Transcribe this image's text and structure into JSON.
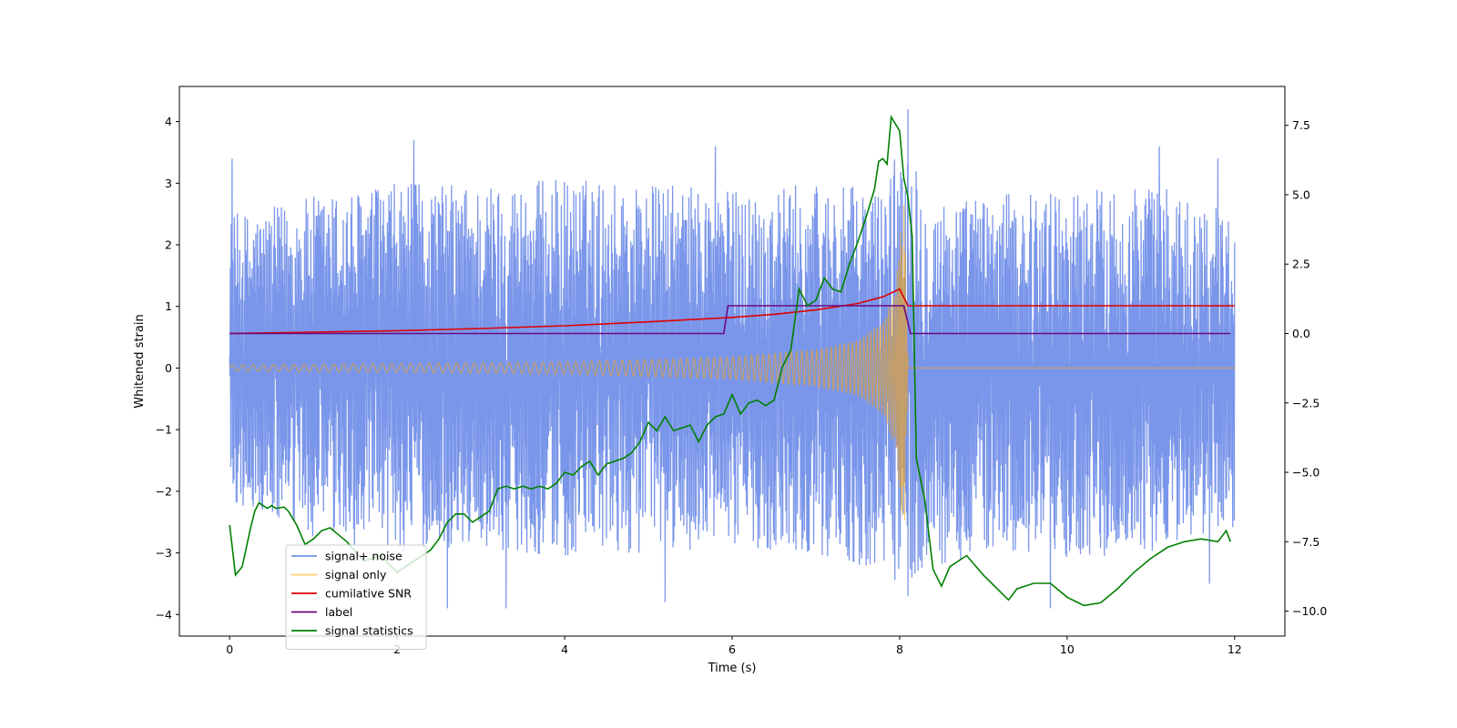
{
  "chart_data": {
    "type": "line",
    "title": "",
    "xlabel": "Time (s)",
    "ylabel": "Whitened strain",
    "y2label": "",
    "xlim": [
      -0.6,
      12.6
    ],
    "ylim": [
      -4.35,
      4.57
    ],
    "y2lim": [
      -10.9,
      8.9
    ],
    "xticks": [
      0,
      2,
      4,
      6,
      8,
      10,
      12
    ],
    "xtick_labels": [
      "0",
      "2",
      "4",
      "6",
      "8",
      "10",
      "12"
    ],
    "yticks": [
      -4,
      -3,
      -2,
      -1,
      0,
      1,
      2,
      3,
      4
    ],
    "ytick_labels": [
      "−4",
      "−3",
      "−2",
      "−1",
      "0",
      "1",
      "2",
      "3",
      "4"
    ],
    "y2ticks": [
      -10,
      -7.5,
      -5,
      -2.5,
      0,
      2.5,
      5,
      7.5
    ],
    "y2tick_labels": [
      "−10.0",
      "−7.5",
      "−5.0",
      "−2.5",
      "0.0",
      "2.5",
      "5.0",
      "7.5"
    ],
    "grid": false,
    "legend_position": "lower-left",
    "series": [
      {
        "name": "signal+ noise",
        "color": "#4169e1",
        "axis": "left",
        "style": "noise",
        "x_range": [
          0,
          12
        ],
        "envelope_max": [
          [
            0,
            2.5
          ],
          [
            0.5,
            2.6
          ],
          [
            1,
            2.8
          ],
          [
            2,
            3.0
          ],
          [
            3,
            3.0
          ],
          [
            4,
            3.1
          ],
          [
            5,
            3.0
          ],
          [
            6,
            2.9
          ],
          [
            7,
            3.0
          ],
          [
            7.8,
            2.9
          ],
          [
            8.1,
            4.1
          ],
          [
            8.3,
            2.7
          ],
          [
            9,
            2.8
          ],
          [
            10,
            2.9
          ],
          [
            11,
            3.0
          ],
          [
            12,
            2.5
          ]
        ],
        "envelope_min": [
          [
            0,
            -2.2
          ],
          [
            1,
            -2.8
          ],
          [
            2,
            -3.0
          ],
          [
            3,
            -2.9
          ],
          [
            4,
            -3.1
          ],
          [
            5,
            -3.0
          ],
          [
            6,
            -2.9
          ],
          [
            7,
            -3.0
          ],
          [
            8,
            -3.5
          ],
          [
            9,
            -3.0
          ],
          [
            10,
            -3.1
          ],
          [
            11,
            -3.0
          ],
          [
            12,
            -2.6
          ]
        ],
        "spikes": [
          [
            0.03,
            3.4
          ],
          [
            0.05,
            -1.3
          ],
          [
            2.2,
            3.7
          ],
          [
            2.6,
            -3.9
          ],
          [
            3.3,
            -3.9
          ],
          [
            5.2,
            -3.8
          ],
          [
            5.8,
            3.6
          ],
          [
            7.6,
            -3.2
          ],
          [
            8.1,
            4.2
          ],
          [
            8.1,
            -3.7
          ],
          [
            9.8,
            -3.9
          ],
          [
            11.1,
            3.6
          ],
          [
            11.8,
            3.4
          ],
          [
            11.7,
            -3.5
          ]
        ]
      },
      {
        "name": "signal only",
        "color": "#ffa500",
        "axis": "left",
        "style": "chirp",
        "x_range": [
          0,
          12
        ],
        "merger_time": 8.05,
        "amplitude_points": [
          [
            0,
            0.05
          ],
          [
            2,
            0.07
          ],
          [
            4,
            0.1
          ],
          [
            6,
            0.18
          ],
          [
            7,
            0.3
          ],
          [
            7.5,
            0.45
          ],
          [
            7.8,
            0.75
          ],
          [
            7.95,
            1.3
          ],
          [
            8.02,
            2.4
          ],
          [
            8.05,
            3.1
          ],
          [
            8.1,
            0.0
          ],
          [
            12,
            0.0
          ]
        ]
      },
      {
        "name": "cumilative SNR",
        "color": "#e00000",
        "axis": "right",
        "x": [
          0,
          1,
          2,
          3,
          4,
          5,
          6,
          6.5,
          7,
          7.5,
          7.8,
          8.0,
          8.1,
          12
        ],
        "y": [
          0.0,
          0.05,
          0.1,
          0.18,
          0.28,
          0.42,
          0.58,
          0.69,
          0.85,
          1.08,
          1.32,
          1.6,
          1.0,
          1.0
        ]
      },
      {
        "name": "label",
        "color": "#6a0a80",
        "axis": "right",
        "x": [
          0,
          5.9,
          5.95,
          8.05,
          8.13,
          11.95
        ],
        "y": [
          0,
          0,
          1,
          1,
          0,
          0
        ]
      },
      {
        "name": "signal statistics",
        "color": "#008000",
        "axis": "right",
        "x": [
          0,
          0.07,
          0.15,
          0.25,
          0.3,
          0.35,
          0.45,
          0.5,
          0.55,
          0.65,
          0.7,
          0.8,
          0.9,
          1.0,
          1.1,
          1.2,
          1.4,
          1.6,
          1.8,
          2.0,
          2.2,
          2.4,
          2.5,
          2.6,
          2.7,
          2.8,
          2.9,
          3.0,
          3.1,
          3.2,
          3.3,
          3.4,
          3.5,
          3.6,
          3.7,
          3.8,
          3.9,
          4.0,
          4.1,
          4.2,
          4.3,
          4.4,
          4.5,
          4.6,
          4.7,
          4.8,
          4.9,
          5.0,
          5.1,
          5.2,
          5.3,
          5.4,
          5.5,
          5.6,
          5.7,
          5.8,
          5.9,
          6.0,
          6.1,
          6.2,
          6.3,
          6.4,
          6.5,
          6.6,
          6.7,
          6.8,
          6.9,
          7.0,
          7.1,
          7.2,
          7.3,
          7.4,
          7.5,
          7.6,
          7.7,
          7.75,
          7.8,
          7.85,
          7.9,
          8.0,
          8.05,
          8.1,
          8.15,
          8.2,
          8.3,
          8.4,
          8.5,
          8.6,
          8.8,
          9.0,
          9.2,
          9.3,
          9.4,
          9.6,
          9.8,
          10.0,
          10.2,
          10.4,
          10.6,
          10.8,
          11.0,
          11.2,
          11.4,
          11.6,
          11.8,
          11.9,
          11.95
        ],
        "y": [
          -6.9,
          -8.7,
          -8.4,
          -7.0,
          -6.4,
          -6.1,
          -6.3,
          -6.2,
          -6.3,
          -6.25,
          -6.4,
          -6.9,
          -7.6,
          -7.4,
          -7.1,
          -7.0,
          -7.5,
          -8.2,
          -8.0,
          -8.6,
          -8.2,
          -7.8,
          -7.4,
          -6.8,
          -6.5,
          -6.5,
          -6.8,
          -6.6,
          -6.4,
          -5.6,
          -5.5,
          -5.6,
          -5.5,
          -5.6,
          -5.5,
          -5.6,
          -5.4,
          -5.0,
          -5.1,
          -4.8,
          -4.6,
          -5.1,
          -4.7,
          -4.6,
          -4.5,
          -4.3,
          -3.9,
          -3.2,
          -3.5,
          -3.0,
          -3.5,
          -3.4,
          -3.3,
          -3.9,
          -3.3,
          -3.0,
          -2.9,
          -2.2,
          -2.9,
          -2.5,
          -2.4,
          -2.6,
          -2.4,
          -1.2,
          -0.6,
          1.6,
          1.0,
          1.2,
          2.0,
          1.6,
          1.5,
          2.5,
          3.3,
          4.2,
          5.2,
          6.2,
          6.3,
          6.1,
          7.8,
          7.3,
          5.6,
          4.9,
          3.5,
          -4.5,
          -6.0,
          -8.5,
          -9.1,
          -8.4,
          -8.0,
          -8.7,
          -9.3,
          -9.6,
          -9.2,
          -9.0,
          -9.0,
          -9.5,
          -9.8,
          -9.7,
          -9.2,
          -8.6,
          -8.1,
          -7.7,
          -7.5,
          -7.4,
          -7.5,
          -7.1,
          -7.5
        ]
      }
    ]
  }
}
